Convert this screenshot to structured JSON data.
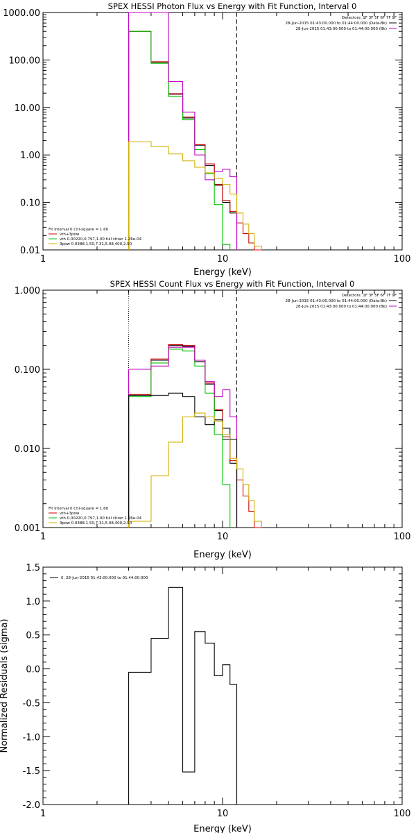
{
  "chart_data": [
    {
      "type": "line",
      "title": "SPEX HESSI Photon Flux vs Energy with Fit Function, Interval 0",
      "xlabel": "Energy (keV)",
      "ylabel": "",
      "xscale": "log",
      "yscale": "log",
      "xlim": [
        1,
        100
      ],
      "ylim": [
        0.01,
        1000
      ],
      "xticks": [
        "1",
        "10",
        "100"
      ],
      "yticks": [
        "0.01",
        "0.10",
        "1.00",
        "10.00",
        "100.00",
        "1000.00"
      ],
      "vlines": [
        {
          "x": 3.0,
          "style": "dotted"
        },
        {
          "x": 12.0,
          "style": "dashed"
        }
      ],
      "detectors": "Detectors: 1F 3F 5F 6F 7F 9F",
      "time_ranges": [
        {
          "text": "28-Jun-2015 01:43:00.000 to 01:44:00.000 (Data-Bk)",
          "color": "#000000"
        },
        {
          "text": "28-Jun-2015 01:43:00.000 to 01:44:00.000 (Bk)",
          "color": "#c000c0"
        }
      ],
      "fit_legend": {
        "header": "Fit Interval 0   Chi-square = 1.60",
        "entries": [
          {
            "text": "vth+3pow",
            "color": "#d00000"
          },
          {
            "text": "vth 0.00220,0.797,1.00   full chian 1.26e-04",
            "color": "#00c000"
          },
          {
            "text": "3pow 0.0388,1.50,7.31,5.08,400,2.50",
            "color": "#d0b000"
          }
        ]
      },
      "series": [
        {
          "color": "#000000",
          "edges": [
            3.0,
            4.0,
            5.0,
            6.0,
            7.0,
            8.0,
            9.0,
            10.0,
            11.0,
            12.0
          ],
          "values": [
            400,
            90,
            19,
            6.0,
            1.6,
            0.6,
            0.23,
            0.1,
            0.06
          ]
        },
        {
          "color": "#d00000",
          "edges": [
            3.0,
            4.0,
            5.0,
            6.0,
            7.0,
            8.0,
            9.0,
            10.0,
            11.0,
            12.0,
            13.0,
            14.0,
            15.0,
            16.5
          ],
          "values": [
            400,
            92,
            19.5,
            6.3,
            1.65,
            0.65,
            0.24,
            0.11,
            0.065,
            0.037,
            0.022,
            0.014,
            0.01
          ]
        },
        {
          "color": "#00c000",
          "edges": [
            3.0,
            4.0,
            5.0,
            6.0,
            7.0,
            8.0,
            9.0,
            10.0,
            11.0
          ],
          "values": [
            400,
            85,
            17,
            5.5,
            1.3,
            0.4,
            0.09,
            0.013
          ]
        },
        {
          "color": "#c000c0",
          "edges": [
            3.0,
            4.0,
            5.0,
            6.0,
            7.0,
            8.0,
            9.0,
            10.0,
            11.0,
            12.0
          ],
          "values": [
            1000,
            1000,
            35,
            8,
            1.0,
            0.3,
            0.45,
            0.5,
            0.35
          ]
        },
        {
          "color": "#d0b000",
          "edges": [
            3.0,
            4.0,
            5.0,
            6.0,
            7.0,
            8.0,
            9.0,
            10.0,
            11.0,
            12.0,
            13.0,
            14.0,
            15.0,
            16.5
          ],
          "values": [
            1.9,
            1.5,
            1.05,
            0.75,
            0.55,
            0.42,
            0.32,
            0.24,
            0.15,
            0.06,
            0.035,
            0.022,
            0.012
          ]
        }
      ]
    },
    {
      "type": "line",
      "title": "SPEX HESSI Count Flux vs Energy with Fit Function, Interval 0",
      "xlabel": "Energy (keV)",
      "ylabel": "",
      "xscale": "log",
      "yscale": "log",
      "xlim": [
        1,
        100
      ],
      "ylim": [
        0.001,
        1.0
      ],
      "xticks": [
        "1",
        "10",
        "100"
      ],
      "yticks": [
        "0.001",
        "0.010",
        "0.100",
        "1.000"
      ],
      "vlines": [
        {
          "x": 3.0,
          "style": "dotted"
        },
        {
          "x": 12.0,
          "style": "dashed"
        }
      ],
      "detectors": "Detectors: 1F 3F 5F 6F 7F 9F",
      "time_ranges": [
        {
          "text": "28-Jun-2015 01:43:00.000 to 01:44:00.000 (Data-Bk)",
          "color": "#000000"
        },
        {
          "text": "28-Jun-2015 01:43:00.000 to 01:44:00.000 (Bk)",
          "color": "#c000c0"
        }
      ],
      "fit_legend": {
        "header": "Fit Interval 0   Chi-square = 1.60",
        "entries": [
          {
            "text": "vth+3pow",
            "color": "#d00000"
          },
          {
            "text": "vth 0.00220,0.797,1.00   full chian 1.26e-04",
            "color": "#00c000"
          },
          {
            "text": "3pow 0.0388,1.50,7.31,5.08,400,2.50",
            "color": "#d0b000"
          }
        ]
      },
      "series": [
        {
          "color": "#000000",
          "edges": [
            3.0,
            4.0,
            5.0,
            6.0,
            7.0,
            8.0,
            9.0,
            10.0,
            11.0,
            12.0
          ],
          "values": [
            0.047,
            0.13,
            0.2,
            0.195,
            0.125,
            0.065,
            0.03,
            0.013,
            0.0065
          ]
        },
        {
          "color": "#d00000",
          "edges": [
            3.0,
            4.0,
            5.0,
            6.0,
            7.0,
            8.0,
            9.0,
            10.0,
            11.0,
            12.0,
            13.0,
            14.0,
            15.0,
            16.5
          ],
          "values": [
            0.048,
            0.135,
            0.205,
            0.2,
            0.13,
            0.067,
            0.031,
            0.014,
            0.007,
            0.004,
            0.0025,
            0.0016,
            0.001
          ]
        },
        {
          "color": "#00c000",
          "edges": [
            3.0,
            4.0,
            5.0,
            6.0,
            7.0,
            8.0,
            9.0,
            10.0,
            11.0
          ],
          "values": [
            0.045,
            0.12,
            0.18,
            0.17,
            0.11,
            0.05,
            0.015,
            0.0035
          ]
        },
        {
          "color": "#c000c0",
          "edges": [
            3.0,
            4.0,
            5.0,
            6.0,
            7.0,
            8.0,
            9.0,
            10.0,
            11.0,
            12.0
          ],
          "values": [
            0.1,
            0.11,
            0.19,
            0.19,
            0.13,
            0.07,
            0.045,
            0.055,
            0.025
          ]
        },
        {
          "color": "#000000",
          "edges": [
            3.0,
            4.0,
            5.0,
            6.0,
            7.0,
            8.0,
            9.0,
            10.0,
            11.0,
            12.0
          ],
          "values": [
            0.047,
            0.047,
            0.05,
            0.045,
            0.025,
            0.02,
            0.023,
            0.018,
            0.013
          ]
        },
        {
          "color": "#d0b000",
          "edges": [
            3.0,
            4.0,
            5.0,
            6.0,
            7.0,
            8.0,
            9.0,
            10.0,
            11.0,
            12.0,
            13.0,
            14.0,
            15.0,
            16.5
          ],
          "values": [
            0.0012,
            0.0045,
            0.012,
            0.025,
            0.028,
            0.025,
            0.022,
            0.015,
            0.0075,
            0.0055,
            0.0035,
            0.0022,
            0.0012
          ]
        }
      ]
    },
    {
      "type": "line",
      "title": "",
      "xlabel": "Energy (keV)",
      "ylabel": "Normalized Residuals (sigma)",
      "xscale": "log",
      "yscale": "linear",
      "xlim": [
        1,
        100
      ],
      "ylim": [
        -2.0,
        1.5
      ],
      "xticks": [
        "1",
        "10",
        "100"
      ],
      "yticks": [
        "-2.0",
        "-1.5",
        "-1.0",
        "-0.5",
        "0.0",
        "0.5",
        "1.0",
        "1.5"
      ],
      "legend": "0. 28-Jun-2015 01:43:00.000 to 01:44:00.000",
      "series": [
        {
          "color": "#000000",
          "edges": [
            3.0,
            4.0,
            5.0,
            6.0,
            7.0,
            8.0,
            9.0,
            10.0,
            11.0,
            12.0
          ],
          "values": [
            -0.05,
            0.45,
            1.2,
            -1.52,
            0.55,
            0.38,
            -0.1,
            0.06,
            -0.23
          ]
        }
      ]
    }
  ]
}
